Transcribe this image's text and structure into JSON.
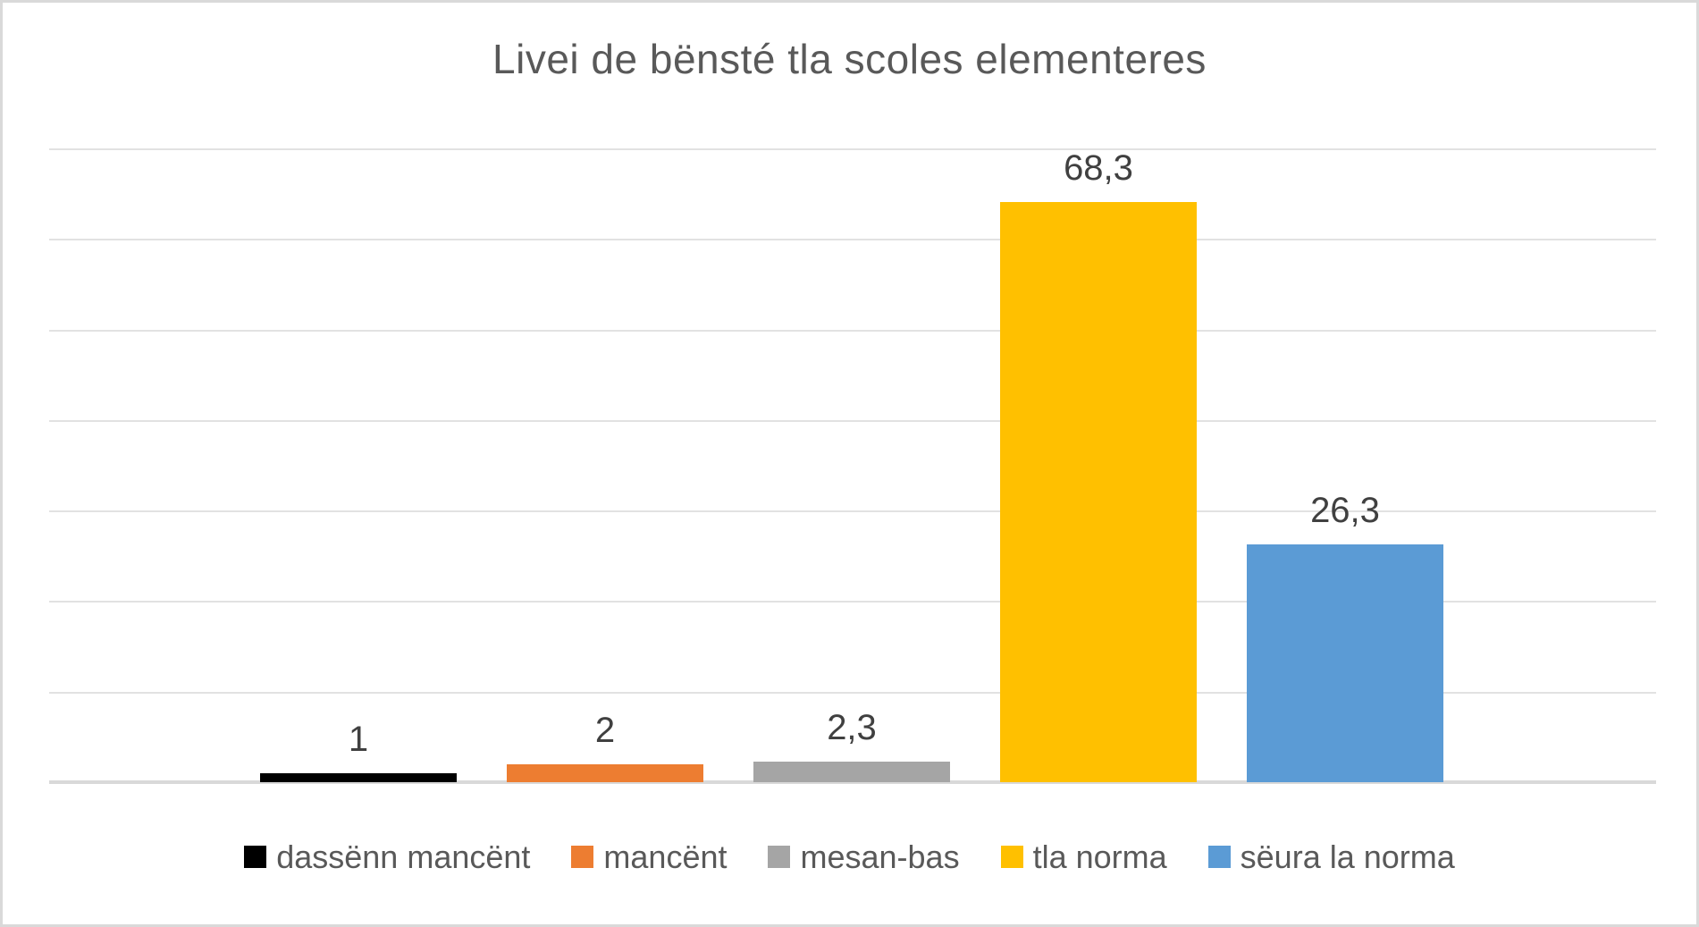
{
  "chart_data": {
    "type": "bar",
    "title": "Livei de bënsté tla scoles elementeres",
    "categories": [
      "dassënn mancënt",
      "mancënt",
      "mesan-bas",
      "tla norma",
      "sëura la norma"
    ],
    "series": [
      {
        "name": "Livei de bënsté",
        "points": [
          {
            "category": "dassënn mancënt",
            "value": 1,
            "label": "1",
            "color": "#000000"
          },
          {
            "category": "mancënt",
            "value": 2,
            "label": "2",
            "color": "#ED7D31"
          },
          {
            "category": "mesan-bas",
            "value": 2.3,
            "label": "2,3",
            "color": "#A5A5A5"
          },
          {
            "category": "tla norma",
            "value": 68.3,
            "label": "68,3",
            "color": "#FFC000"
          },
          {
            "category": "sëura la norma",
            "value": 26.3,
            "label": "26,3",
            "color": "#5B9BD5"
          }
        ]
      }
    ],
    "xlabel": "",
    "ylabel": "",
    "ylim": [
      0,
      70
    ],
    "grid": true,
    "grid_step": 10,
    "y_tick_labels_visible": false,
    "x_tick_labels_visible": false,
    "legend_position": "bottom",
    "legend": [
      {
        "label": "dassënn mancënt",
        "color": "#000000"
      },
      {
        "label": "mancënt",
        "color": "#ED7D31"
      },
      {
        "label": "mesan-bas",
        "color": "#A5A5A5"
      },
      {
        "label": "tla norma",
        "color": "#FFC000"
      },
      {
        "label": "sëura la norma",
        "color": "#5B9BD5"
      }
    ],
    "colors_semantics": {
      "title_text": "#595959",
      "data_label_text": "#404040",
      "legend_text": "#595959",
      "gridline": "#E2E2E2",
      "axis_line": "#D9D9D9",
      "chart_border": "#D9D9D9",
      "background": "#FFFFFF"
    }
  }
}
